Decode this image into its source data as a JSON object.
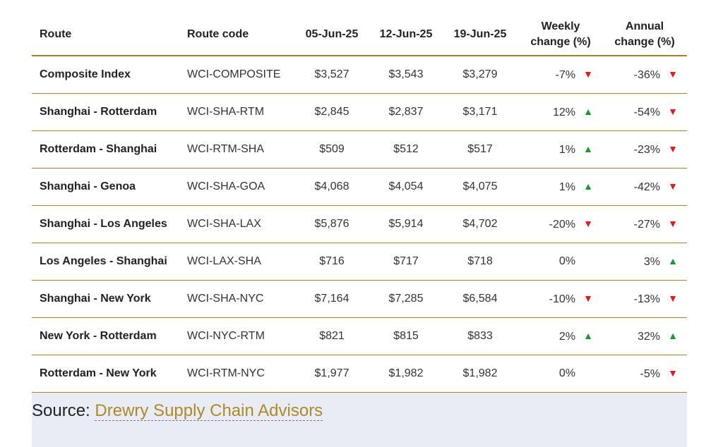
{
  "table": {
    "headers": {
      "route": "Route",
      "code": "Route code",
      "d1": "05-Jun-25",
      "d2": "12-Jun-25",
      "d3": "19-Jun-25",
      "weekly_line1": "Weekly",
      "weekly_line2": "change (%)",
      "annual_line1": "Annual",
      "annual_line2": "change (%)"
    },
    "rows": [
      {
        "route": "Composite Index",
        "code": "WCI-COMPOSITE",
        "d1": "$3,527",
        "d2": "$3,543",
        "d3": "$3,279",
        "weekly": "-7%",
        "weekly_dir": "down",
        "annual": "-36%",
        "annual_dir": "down"
      },
      {
        "route": "Shanghai - Rotterdam",
        "code": "WCI-SHA-RTM",
        "d1": "$2,845",
        "d2": "$2,837",
        "d3": "$3,171",
        "weekly": "12%",
        "weekly_dir": "up",
        "annual": "-54%",
        "annual_dir": "down"
      },
      {
        "route": "Rotterdam - Shanghai",
        "code": "WCI-RTM-SHA",
        "d1": "$509",
        "d2": "$512",
        "d3": "$517",
        "weekly": "1%",
        "weekly_dir": "up",
        "annual": "-23%",
        "annual_dir": "down"
      },
      {
        "route": "Shanghai - Genoa",
        "code": "WCI-SHA-GOA",
        "d1": "$4,068",
        "d2": "$4,054",
        "d3": "$4,075",
        "weekly": "1%",
        "weekly_dir": "up",
        "annual": "-42%",
        "annual_dir": "down"
      },
      {
        "route": "Shanghai - Los Angeles",
        "code": "WCI-SHA-LAX",
        "d1": "$5,876",
        "d2": "$5,914",
        "d3": "$4,702",
        "weekly": "-20%",
        "weekly_dir": "down",
        "annual": "-27%",
        "annual_dir": "down"
      },
      {
        "route": "Los Angeles - Shanghai",
        "code": "WCI-LAX-SHA",
        "d1": "$716",
        "d2": "$717",
        "d3": "$718",
        "weekly": "0%",
        "weekly_dir": "none",
        "annual": "3%",
        "annual_dir": "up"
      },
      {
        "route": "Shanghai - New York",
        "code": "WCI-SHA-NYC",
        "d1": "$7,164",
        "d2": "$7,285",
        "d3": "$6,584",
        "weekly": "-10%",
        "weekly_dir": "down",
        "annual": "-13%",
        "annual_dir": "down"
      },
      {
        "route": "New York - Rotterdam",
        "code": "WCI-NYC-RTM",
        "d1": "$821",
        "d2": "$815",
        "d3": "$833",
        "weekly": "2%",
        "weekly_dir": "up",
        "annual": "32%",
        "annual_dir": "up"
      },
      {
        "route": "Rotterdam - New York",
        "code": "WCI-RTM-NYC",
        "d1": "$1,977",
        "d2": "$1,982",
        "d3": "$1,982",
        "weekly": "0%",
        "weekly_dir": "none",
        "annual": "-5%",
        "annual_dir": "down"
      }
    ]
  },
  "source": {
    "prefix": "Source: ",
    "link_text": "Drewry Supply Chain Advisors"
  },
  "colors": {
    "rule": "#b07d2b",
    "down": "#e01b1b",
    "up": "#16992f",
    "link": "#b0882a",
    "source_bg": "#e8edf5"
  },
  "icons": {
    "up": "triangle-up-icon",
    "down": "triangle-down-icon"
  }
}
